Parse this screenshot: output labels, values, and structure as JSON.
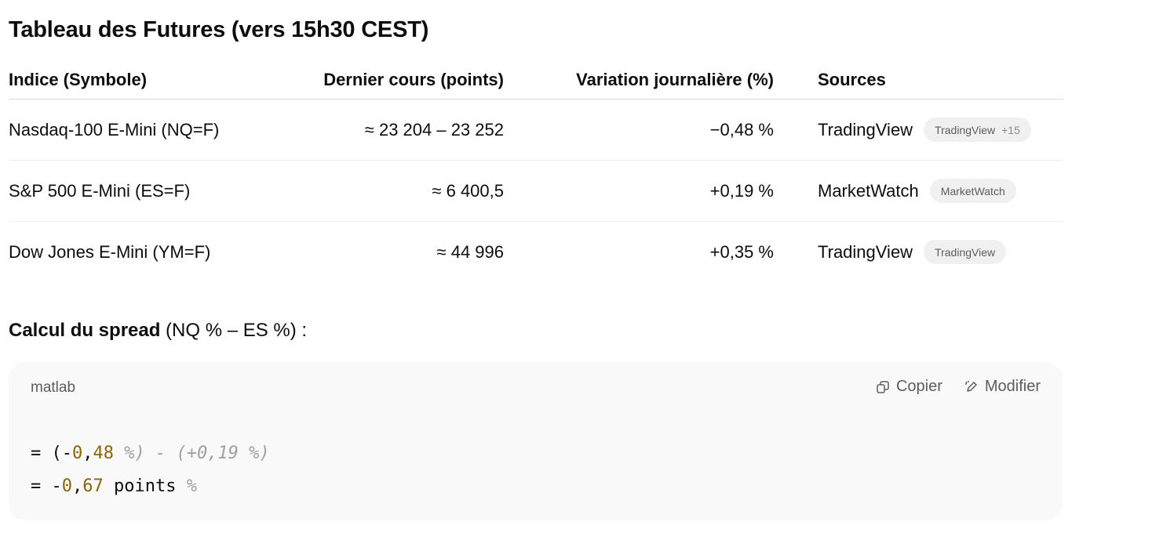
{
  "title": "Tableau des Futures (vers 15h30 CEST)",
  "table": {
    "headers": [
      "Indice (Symbole)",
      "Dernier cours (points)",
      "Variation journalière (%)",
      "Sources"
    ],
    "rows": [
      {
        "index": "Nasdaq-100 E-Mini (NQ=F)",
        "price": "≈ 23 204 – 23 252",
        "change": "−0,48 %",
        "source": "TradingView",
        "pill": "TradingView",
        "pill_more": "+15"
      },
      {
        "index": "S&P 500 E-Mini (ES=F)",
        "price": "≈ 6 400,5",
        "change": "+0,19 %",
        "source": "MarketWatch",
        "pill": "MarketWatch",
        "pill_more": ""
      },
      {
        "index": "Dow Jones E-Mini (YM=F)",
        "price": "≈ 44 996",
        "change": "+0,35 %",
        "source": "TradingView",
        "pill": "TradingView",
        "pill_more": ""
      }
    ]
  },
  "spread": {
    "bold": "Calcul du spread",
    "rest": " (NQ % – ES %) :"
  },
  "code_block": {
    "language": "matlab",
    "copy_label": "Copier",
    "edit_label": "Modifier",
    "line1": {
      "prefix": "= (-",
      "n1": "0",
      "sep": ",",
      "n2": "48",
      "comment": " %) - (+0,19 %)"
    },
    "line2": {
      "prefix": "= -",
      "n1": "0",
      "sep": ",",
      "n2": "67",
      "mid": " points ",
      "comment": "%"
    }
  }
}
